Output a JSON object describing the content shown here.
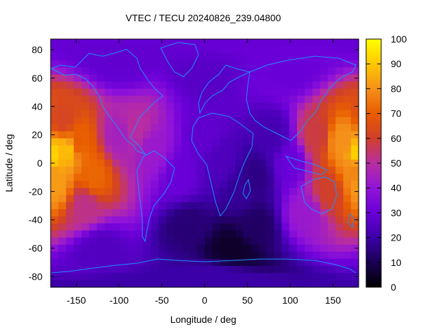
{
  "chart_data": {
    "type": "heatmap",
    "title": "VTEC / TECU 20240826_239.04800",
    "xlabel": "Longitude / deg",
    "ylabel": "Latitude / deg",
    "xlim": [
      -180,
      180
    ],
    "ylim": [
      -87.5,
      87.5
    ],
    "x_ticks": [
      -150,
      -100,
      -50,
      0,
      50,
      100,
      150
    ],
    "y_ticks": [
      -80,
      -60,
      -40,
      -20,
      0,
      20,
      40,
      60,
      80
    ],
    "colorbar": {
      "min": 0,
      "max": 100,
      "ticks": [
        0,
        10,
        20,
        30,
        40,
        50,
        60,
        70,
        80,
        90,
        100
      ]
    },
    "colormap": [
      "#000000",
      "#1a0052",
      "#3c00a8",
      "#6a00d8",
      "#9214d8",
      "#b82ea0",
      "#d0402a",
      "#e85c00",
      "#f5901a",
      "#ffc800",
      "#ffff00"
    ],
    "grid": false,
    "legend": "none",
    "field": [
      {
        "lon": -180,
        "lat": 5,
        "value": 92
      },
      {
        "lon": -160,
        "lat": 10,
        "value": 88
      },
      {
        "lon": -175,
        "lat": -15,
        "value": 82
      },
      {
        "lon": -150,
        "lat": 15,
        "value": 70
      },
      {
        "lon": -130,
        "lat": -10,
        "value": 72
      },
      {
        "lon": -165,
        "lat": 30,
        "value": 62
      },
      {
        "lon": -140,
        "lat": -30,
        "value": 52
      },
      {
        "lon": -100,
        "lat": 20,
        "value": 45
      },
      {
        "lon": -80,
        "lat": 25,
        "value": 50
      },
      {
        "lon": -60,
        "lat": 10,
        "value": 42
      },
      {
        "lon": -30,
        "lat": -10,
        "value": 30
      },
      {
        "lon": 0,
        "lat": 20,
        "value": 28
      },
      {
        "lon": 20,
        "lat": 0,
        "value": 24
      },
      {
        "lon": 40,
        "lat": -20,
        "value": 18
      },
      {
        "lon": 60,
        "lat": -10,
        "value": 16
      },
      {
        "lon": 80,
        "lat": 20,
        "value": 22
      },
      {
        "lon": 100,
        "lat": 0,
        "value": 30
      },
      {
        "lon": 130,
        "lat": 20,
        "value": 58
      },
      {
        "lon": 160,
        "lat": 15,
        "value": 80
      },
      {
        "lon": 175,
        "lat": -5,
        "value": 78
      },
      {
        "lon": 145,
        "lat": -20,
        "value": 60
      },
      {
        "lon": 120,
        "lat": -35,
        "value": 42
      },
      {
        "lon": 30,
        "lat": -60,
        "value": 5
      },
      {
        "lon": -20,
        "lat": -45,
        "value": 14
      },
      {
        "lon": 60,
        "lat": -45,
        "value": 12
      },
      {
        "lon": 0,
        "lat": 60,
        "value": 26
      },
      {
        "lon": -100,
        "lat": 70,
        "value": 28
      },
      {
        "lon": 100,
        "lat": 65,
        "value": 30
      },
      {
        "lon": 0,
        "lat": -80,
        "value": 20
      },
      {
        "lon": -120,
        "lat": -60,
        "value": 25
      }
    ]
  }
}
